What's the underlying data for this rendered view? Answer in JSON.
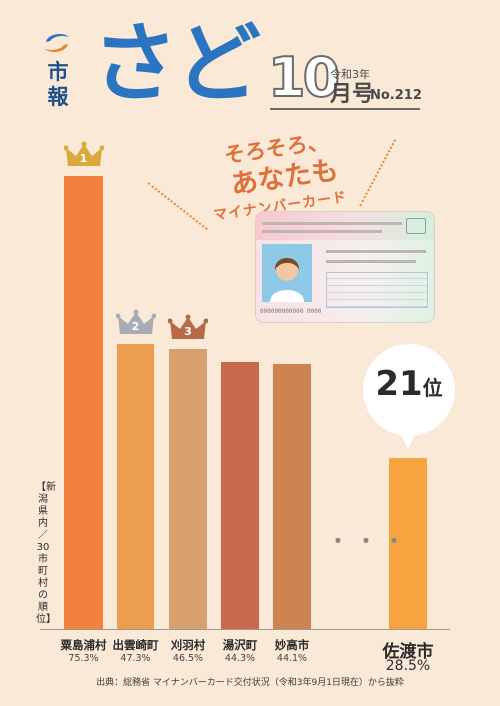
{
  "header": {
    "publisher_label": "市報",
    "title": "さど",
    "month_number": "10",
    "era_label": "令和3年",
    "month_suffix": "月号",
    "issue_label": "No.212"
  },
  "promo": {
    "line1": "そろそろ、",
    "line2": "あなたも",
    "line3": "マイナンバーカード",
    "card_number_sample": "000000000000 0000"
  },
  "chart_data": {
    "type": "bar",
    "title": "",
    "axis_label": "【新潟県内／30市町村の順位】",
    "categories": [
      "粟島浦村",
      "出雲崎町",
      "刈羽村",
      "湯沢町",
      "妙高市",
      "佐渡市"
    ],
    "value_labels": [
      "75.3%",
      "47.3%",
      "46.5%",
      "44.3%",
      "44.1%",
      "28.5%"
    ],
    "values": [
      75.3,
      47.3,
      46.5,
      44.3,
      44.1,
      28.5
    ],
    "ranks": [
      "1",
      "2",
      "3"
    ],
    "highlight_rank": "21",
    "highlight_rank_suffix": "位",
    "ylim": [
      0,
      80
    ],
    "colors": [
      "#f2813d",
      "#eb9d50",
      "#d8a06e",
      "#c9694e",
      "#ce8450",
      "#f6a440"
    ]
  },
  "source_note": "出典：総務省 マイナンバーカード交付状況（令和3年9月1日現在）から抜粋"
}
